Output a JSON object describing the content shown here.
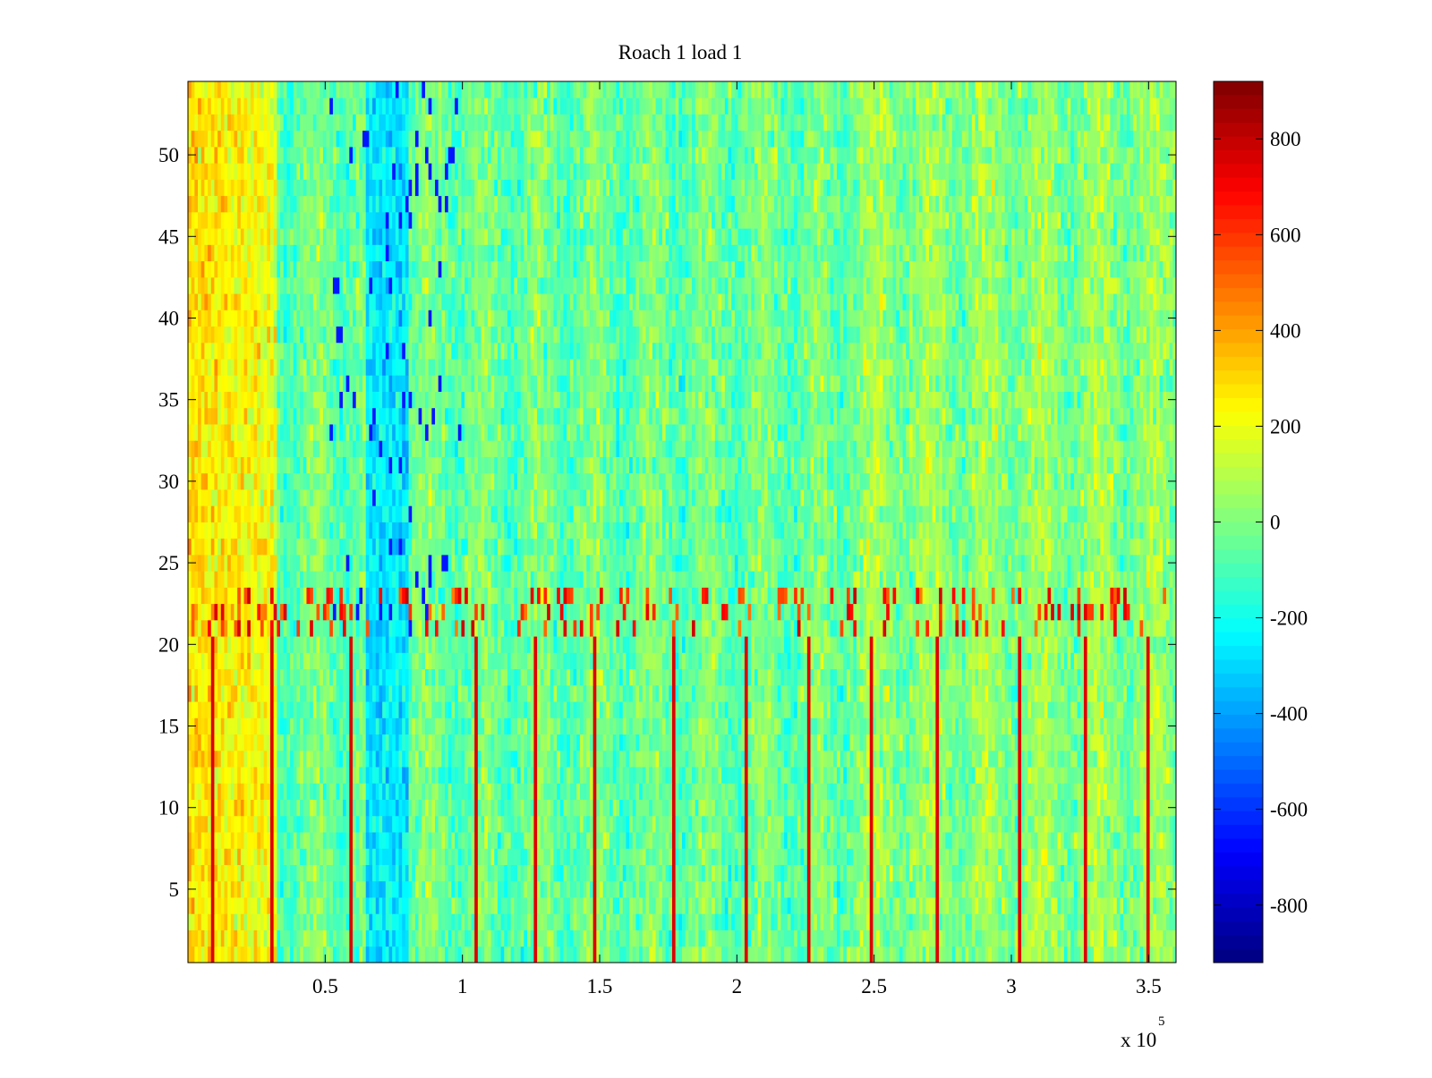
{
  "chart_data": {
    "type": "heatmap",
    "title": "Roach 1 load 1",
    "xlabel": "",
    "ylabel": "",
    "x_range": [
      0,
      360000
    ],
    "y_range": [
      0.5,
      54.5
    ],
    "x_ticks": [
      50000,
      100000,
      150000,
      200000,
      250000,
      300000,
      350000
    ],
    "x_tick_labels": [
      "0.5",
      "1",
      "1.5",
      "2",
      "2.5",
      "3",
      "3.5"
    ],
    "x_multiplier": {
      "base": "x 10",
      "exponent": "5"
    },
    "y_ticks": [
      5,
      10,
      15,
      20,
      25,
      30,
      35,
      40,
      45,
      50
    ],
    "y_tick_labels": [
      "5",
      "10",
      "15",
      "20",
      "25",
      "30",
      "35",
      "40",
      "45",
      "50"
    ],
    "colorbar": {
      "colormap": "jet",
      "range": [
        -920,
        920
      ],
      "ticks": [
        -800,
        -600,
        -400,
        -200,
        0,
        200,
        400,
        600,
        800
      ],
      "tick_labels": [
        "-800",
        "-600",
        "-400",
        "-200",
        "0",
        "200",
        "400",
        "600",
        "800"
      ]
    },
    "grid": false,
    "legend": "none",
    "description_of_values": {
      "rows": 54,
      "baseline_value": 0,
      "high_region_x": [
        0,
        32000
      ],
      "high_region_value": 300,
      "low_band_x": [
        65000,
        80000
      ],
      "low_band_value": -350,
      "spike_x": [
        9000,
        31000,
        59000,
        105000,
        127000,
        148000,
        177000,
        203000,
        226000,
        249000,
        273000,
        303000,
        327000,
        350000
      ],
      "spike_value": 750,
      "active_row_band": [
        21,
        23
      ],
      "active_row_band_value": 450
    }
  }
}
